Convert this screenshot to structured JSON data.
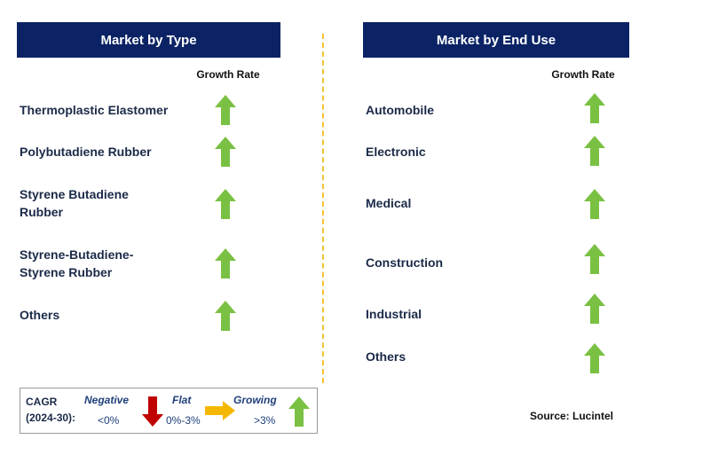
{
  "left": {
    "title": "Market by Type",
    "column_header": "Growth Rate",
    "rows": [
      "Thermoplastic Elastomer",
      "Polybutadiene Rubber",
      "Styrene Butadiene Rubber",
      "Styrene-Butadiene-Styrene Rubber",
      "Others"
    ]
  },
  "right": {
    "title": "Market by End Use",
    "column_header": "Growth Rate",
    "rows": [
      "Automobile",
      "Electronic",
      "Medical",
      "Construction",
      "Industrial",
      "Others"
    ]
  },
  "legend": {
    "label": "CAGR (2024-30):",
    "negative": "Negative",
    "negative_range": "<0%",
    "flat": "Flat",
    "flat_range": "0%-3%",
    "growing": "Growing",
    "growing_range": ">3%"
  },
  "source": "Source: Lucintel"
}
